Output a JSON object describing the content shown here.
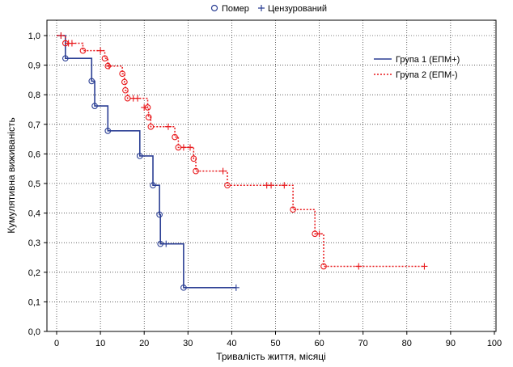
{
  "chart_data": {
    "type": "line",
    "subtype": "kaplan-meier",
    "xlabel": "Тривалість життя, місяці",
    "ylabel": "Кумулятивна виживаність",
    "xlim": [
      0,
      100
    ],
    "ylim": [
      0,
      1
    ],
    "xticks": [
      "0",
      "10",
      "20",
      "30",
      "40",
      "50",
      "60",
      "70",
      "80",
      "90",
      "100"
    ],
    "yticks": [
      "0,0",
      "0,1",
      "0,2",
      "0,3",
      "0,4",
      "0,5",
      "0,6",
      "0,7",
      "0,8",
      "0,9",
      "1,0"
    ],
    "grid": true,
    "top_legend": {
      "events_label": "Помер",
      "censored_label": "Цензурований"
    },
    "legend_placement": "top-right",
    "series": [
      {
        "name": "Група 1 (ЕПМ+)",
        "color": "#2b3f94",
        "line_style": "solid",
        "steps": [
          [
            0,
            1.0
          ],
          [
            2,
            0.923
          ],
          [
            8,
            0.846
          ],
          [
            8.7,
            0.762
          ],
          [
            11.7,
            0.678
          ],
          [
            19,
            0.593
          ],
          [
            22,
            0.494
          ],
          [
            23.5,
            0.395
          ],
          [
            23.7,
            0.296
          ],
          [
            29,
            0.148
          ],
          [
            41,
            0.148
          ]
        ],
        "events": [
          [
            2,
            0.923
          ],
          [
            8,
            0.846
          ],
          [
            8.7,
            0.762
          ],
          [
            11.7,
            0.678
          ],
          [
            19,
            0.593
          ],
          [
            22,
            0.494
          ],
          [
            23.5,
            0.395
          ],
          [
            23.7,
            0.296
          ],
          [
            29,
            0.148
          ]
        ],
        "censored": [
          [
            1,
            1.0
          ],
          [
            25,
            0.296
          ],
          [
            41,
            0.148
          ]
        ]
      },
      {
        "name": "Група 2 (ЕПМ-)",
        "color": "#e8191c",
        "line_style": "dotted",
        "steps": [
          [
            0,
            1.0
          ],
          [
            2,
            0.974
          ],
          [
            6,
            0.949
          ],
          [
            11,
            0.923
          ],
          [
            11.7,
            0.897
          ],
          [
            15,
            0.871
          ],
          [
            15.5,
            0.843
          ],
          [
            15.7,
            0.815
          ],
          [
            16.2,
            0.788
          ],
          [
            20.8,
            0.757
          ],
          [
            21,
            0.724
          ],
          [
            21.5,
            0.692
          ],
          [
            27,
            0.657
          ],
          [
            27.8,
            0.622
          ],
          [
            31.3,
            0.584
          ],
          [
            31.8,
            0.542
          ],
          [
            39,
            0.494
          ],
          [
            54,
            0.412
          ],
          [
            59,
            0.33
          ],
          [
            61,
            0.22
          ],
          [
            84,
            0.22
          ]
        ],
        "events": [
          [
            2,
            0.974
          ],
          [
            6,
            0.949
          ],
          [
            11,
            0.923
          ],
          [
            11.7,
            0.897
          ],
          [
            15,
            0.871
          ],
          [
            15.5,
            0.843
          ],
          [
            15.7,
            0.815
          ],
          [
            16.2,
            0.788
          ],
          [
            20.8,
            0.757
          ],
          [
            21,
            0.724
          ],
          [
            21.5,
            0.692
          ],
          [
            27,
            0.657
          ],
          [
            27.8,
            0.622
          ],
          [
            31.3,
            0.584
          ],
          [
            31.8,
            0.542
          ],
          [
            39,
            0.494
          ],
          [
            54,
            0.412
          ],
          [
            59,
            0.33
          ],
          [
            61,
            0.22
          ]
        ],
        "censored": [
          [
            1,
            1.0
          ],
          [
            2.7,
            0.974
          ],
          [
            3.5,
            0.974
          ],
          [
            10,
            0.949
          ],
          [
            12,
            0.897
          ],
          [
            17.5,
            0.788
          ],
          [
            18.5,
            0.788
          ],
          [
            20,
            0.757
          ],
          [
            25.5,
            0.692
          ],
          [
            29,
            0.622
          ],
          [
            30.5,
            0.622
          ],
          [
            38,
            0.542
          ],
          [
            48,
            0.494
          ],
          [
            49,
            0.494
          ],
          [
            52,
            0.494
          ],
          [
            60,
            0.33
          ],
          [
            69,
            0.22
          ],
          [
            84,
            0.22
          ]
        ]
      }
    ]
  }
}
